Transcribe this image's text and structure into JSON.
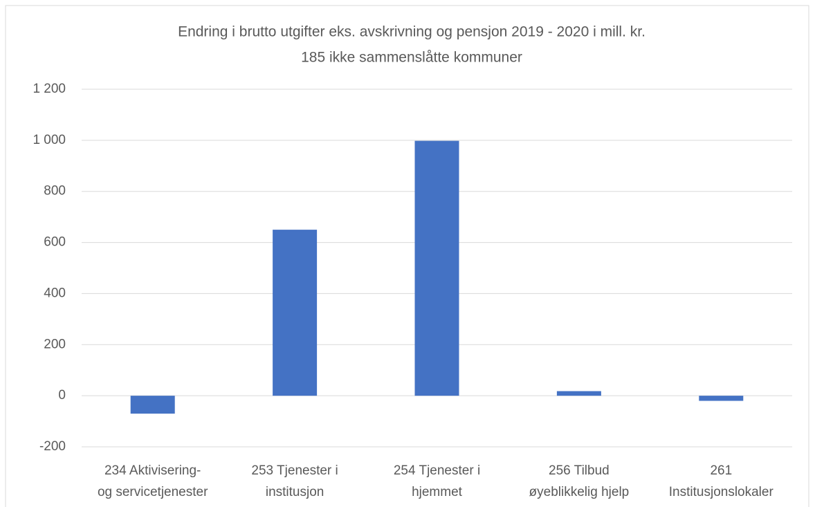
{
  "chart_data": {
    "type": "bar",
    "title": "Endring i brutto utgifter eks. avskrivning og pensjon 2019 - 2020 i mill. kr.",
    "subtitle": "185 ikke sammenslåtte kommuner",
    "categories": [
      [
        "234 Aktivisering-",
        "og servicetjenester"
      ],
      [
        "253 Tjenester i",
        "institusjon"
      ],
      [
        "254 Tjenester i",
        "hjemmet"
      ],
      [
        "256 Tilbud",
        "øyeblikkelig hjelp"
      ],
      [
        "261",
        "Institusjonslokaler"
      ]
    ],
    "values": [
      -70,
      650,
      998,
      18,
      -20
    ],
    "color": "#4472c4",
    "ylim": [
      -200,
      1200
    ],
    "yticks": [
      -200,
      0,
      200,
      400,
      600,
      800,
      {
        "value": 1000,
        "label": "1 000"
      },
      {
        "value": 1200,
        "label": "1 200"
      }
    ],
    "grid": true
  }
}
